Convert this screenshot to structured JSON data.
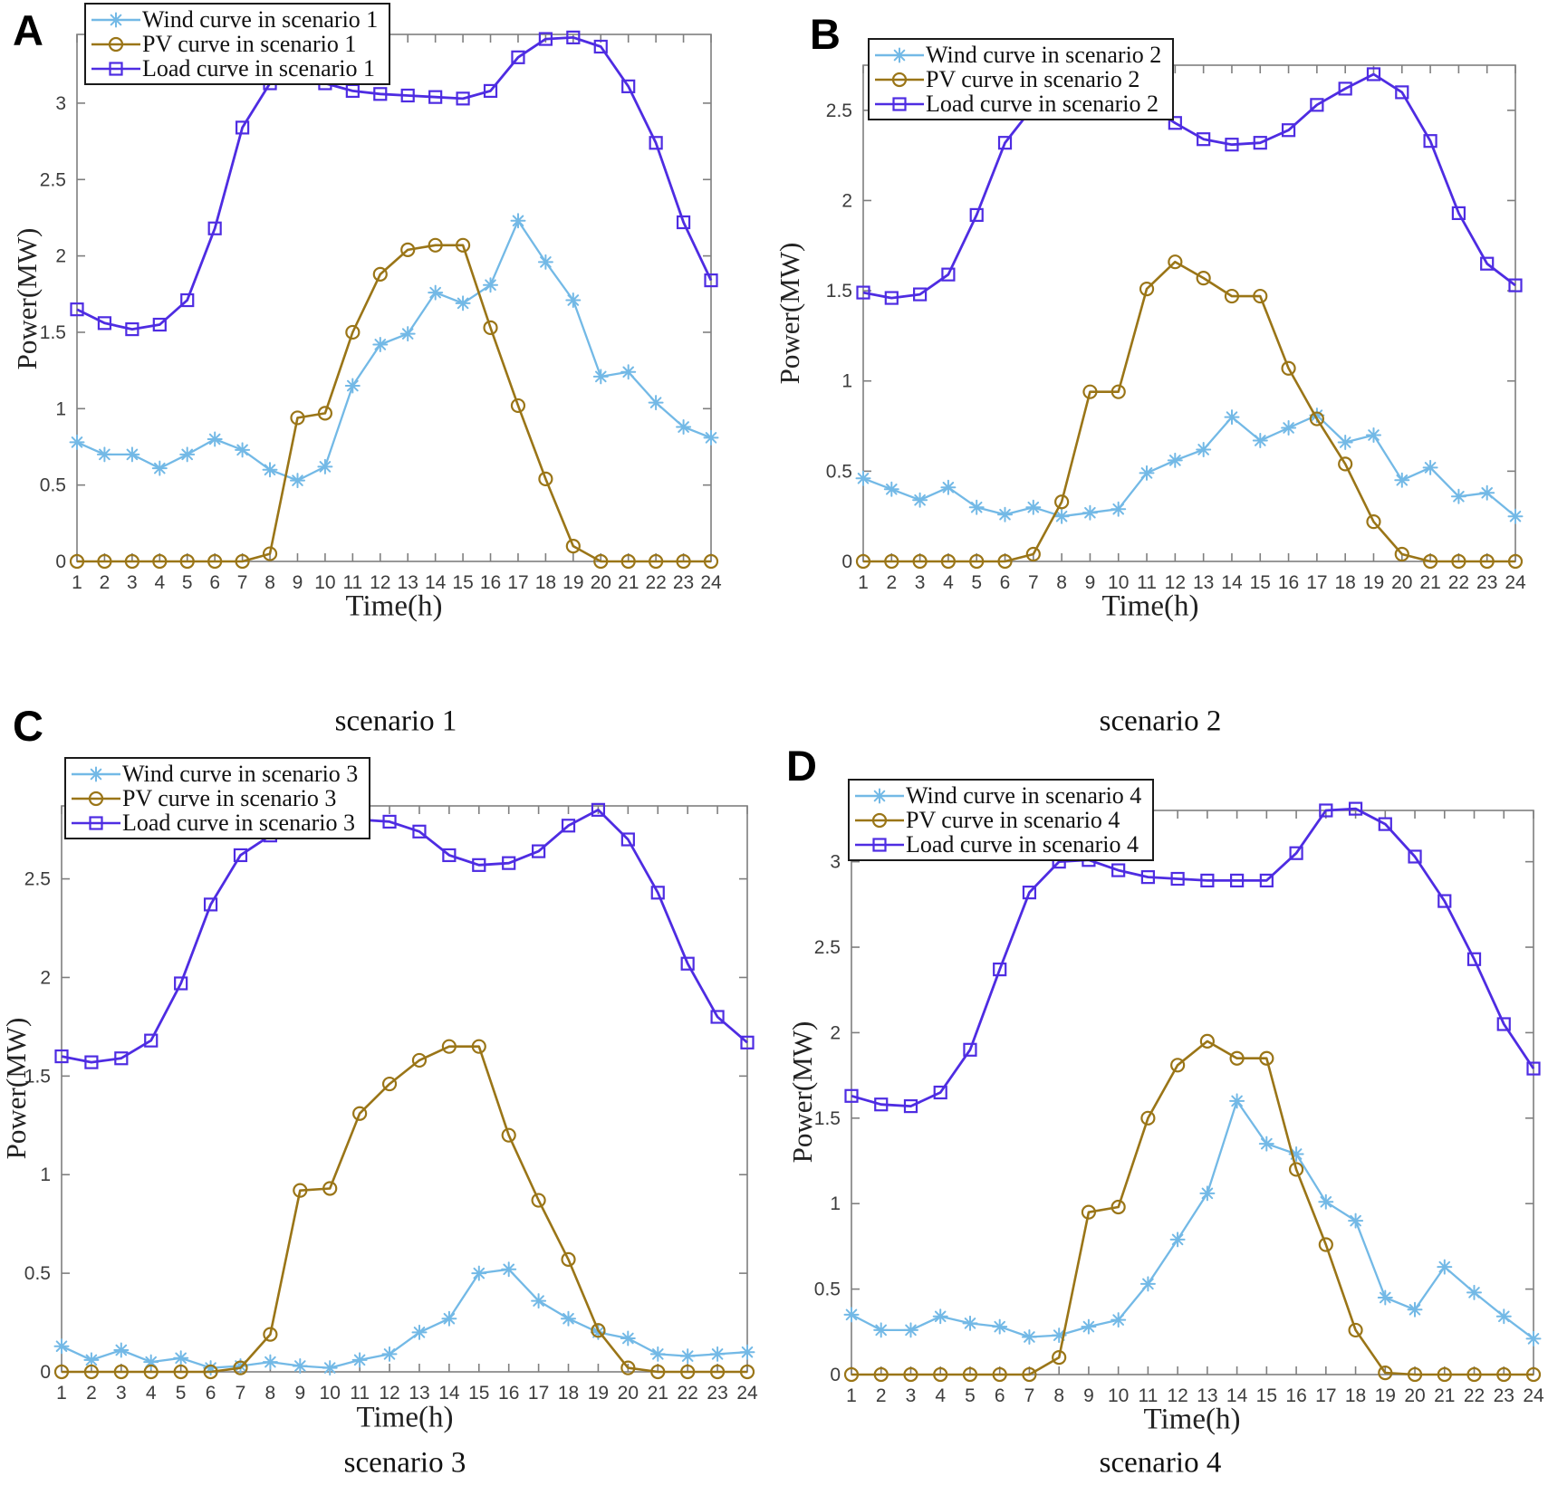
{
  "colors": {
    "wind": "#73B9E6",
    "pv": "#9A7517",
    "load": "#4E2CE2",
    "frame": "#7F7F7F",
    "tick_text": "#3D3D3D",
    "legend_border": "#1A1A1A",
    "background": "#FFFFFF"
  },
  "panels": [
    {
      "letter": "A"
    },
    {
      "letter": "B"
    },
    {
      "letter": "C"
    },
    {
      "letter": "D"
    }
  ],
  "chart_data": [
    {
      "type": "line",
      "title": "scenario 1",
      "xlabel": "Time(h)",
      "ylabel": "Power(MW)",
      "x": [
        1,
        2,
        3,
        4,
        5,
        6,
        7,
        8,
        9,
        10,
        11,
        12,
        13,
        14,
        15,
        16,
        17,
        18,
        19,
        20,
        21,
        22,
        23,
        24
      ],
      "xlim": [
        1,
        24
      ],
      "ylim": [
        0,
        3.45
      ],
      "yticks": [
        0,
        0.5,
        1,
        1.5,
        2,
        2.5,
        3
      ],
      "grid": false,
      "legend_position": "top-left",
      "series": [
        {
          "name": "Wind curve in scenario 1",
          "marker": "asterisk",
          "color_role": "wind",
          "values": [
            0.78,
            0.7,
            0.7,
            0.61,
            0.7,
            0.8,
            0.73,
            0.6,
            0.53,
            0.62,
            1.15,
            1.42,
            1.49,
            1.76,
            1.69,
            1.81,
            2.23,
            1.96,
            1.71,
            1.21,
            1.24,
            1.04,
            0.88,
            0.81
          ]
        },
        {
          "name": "PV curve in scenario 1",
          "marker": "circle",
          "color_role": "pv",
          "values": [
            0,
            0,
            0,
            0,
            0,
            0,
            0,
            0.05,
            0.94,
            0.97,
            1.5,
            1.88,
            2.04,
            2.07,
            2.07,
            1.53,
            1.02,
            0.54,
            0.1,
            0,
            0,
            0,
            0,
            0
          ]
        },
        {
          "name": "Load curve in scenario 1",
          "marker": "square",
          "color_role": "load",
          "values": [
            1.65,
            1.56,
            1.52,
            1.55,
            1.71,
            2.18,
            2.84,
            3.13,
            3.19,
            3.13,
            3.08,
            3.06,
            3.05,
            3.04,
            3.03,
            3.08,
            3.3,
            3.42,
            3.43,
            3.37,
            3.11,
            2.74,
            2.22,
            1.84
          ]
        }
      ]
    },
    {
      "type": "line",
      "title": "scenario 2",
      "xlabel": "Time(h)",
      "ylabel": "Power(MW)",
      "x": [
        1,
        2,
        3,
        4,
        5,
        6,
        7,
        8,
        9,
        10,
        11,
        12,
        13,
        14,
        15,
        16,
        17,
        18,
        19,
        20,
        21,
        22,
        23,
        24
      ],
      "xlim": [
        1,
        24
      ],
      "ylim": [
        0,
        2.75
      ],
      "yticks": [
        0,
        0.5,
        1,
        1.5,
        2,
        2.5
      ],
      "grid": false,
      "legend_position": "top-left",
      "series": [
        {
          "name": "Wind curve in scenario 2",
          "marker": "asterisk",
          "color_role": "wind",
          "values": [
            0.46,
            0.4,
            0.34,
            0.41,
            0.3,
            0.26,
            0.3,
            0.25,
            0.27,
            0.29,
            0.49,
            0.56,
            0.62,
            0.8,
            0.67,
            0.74,
            0.81,
            0.66,
            0.7,
            0.45,
            0.52,
            0.36,
            0.38,
            0.25
          ]
        },
        {
          "name": "PV curve in scenario 2",
          "marker": "circle",
          "color_role": "pv",
          "values": [
            0,
            0,
            0,
            0,
            0,
            0,
            0.04,
            0.33,
            0.94,
            0.94,
            1.51,
            1.66,
            1.57,
            1.47,
            1.47,
            1.07,
            0.79,
            0.54,
            0.22,
            0.04,
            0,
            0,
            0,
            0
          ]
        },
        {
          "name": "Load curve in scenario 2",
          "marker": "square",
          "color_role": "load",
          "values": [
            1.49,
            1.46,
            1.48,
            1.59,
            1.92,
            2.32,
            2.52,
            2.56,
            2.57,
            2.56,
            2.53,
            2.43,
            2.34,
            2.31,
            2.32,
            2.39,
            2.53,
            2.62,
            2.7,
            2.6,
            2.33,
            1.93,
            1.65,
            1.53
          ]
        }
      ]
    },
    {
      "type": "line",
      "title": "scenario 3",
      "xlabel": "Time(h)",
      "ylabel": "Power(MW)",
      "x": [
        1,
        2,
        3,
        4,
        5,
        6,
        7,
        8,
        9,
        10,
        11,
        12,
        13,
        14,
        15,
        16,
        17,
        18,
        19,
        20,
        21,
        22,
        23,
        24
      ],
      "xlim": [
        1,
        24
      ],
      "ylim": [
        0,
        2.87
      ],
      "yticks": [
        0,
        0.5,
        1,
        1.5,
        2,
        2.5
      ],
      "grid": false,
      "legend_position": "top-left",
      "series": [
        {
          "name": "Wind curve in scenario 3",
          "marker": "asterisk",
          "color_role": "wind",
          "values": [
            0.13,
            0.06,
            0.11,
            0.05,
            0.07,
            0.02,
            0.03,
            0.05,
            0.03,
            0.02,
            0.06,
            0.09,
            0.2,
            0.27,
            0.5,
            0.52,
            0.36,
            0.27,
            0.2,
            0.17,
            0.09,
            0.08,
            0.09,
            0.1
          ]
        },
        {
          "name": "PV curve in scenario 3",
          "marker": "circle",
          "color_role": "pv",
          "values": [
            0,
            0,
            0,
            0,
            0,
            0,
            0.02,
            0.19,
            0.92,
            0.93,
            1.31,
            1.46,
            1.58,
            1.65,
            1.65,
            1.2,
            0.87,
            0.57,
            0.21,
            0.02,
            0,
            0,
            0,
            0
          ]
        },
        {
          "name": "Load curve in scenario 3",
          "marker": "square",
          "color_role": "load",
          "values": [
            1.6,
            1.57,
            1.59,
            1.68,
            1.97,
            2.37,
            2.62,
            2.72,
            2.75,
            2.8,
            2.8,
            2.79,
            2.74,
            2.62,
            2.57,
            2.58,
            2.64,
            2.77,
            2.85,
            2.7,
            2.43,
            2.07,
            1.8,
            1.67
          ]
        }
      ]
    },
    {
      "type": "line",
      "title": "scenario 4",
      "xlabel": "Time(h)",
      "ylabel": "Power(MW)",
      "x": [
        1,
        2,
        3,
        4,
        5,
        6,
        7,
        8,
        9,
        10,
        11,
        12,
        13,
        14,
        15,
        16,
        17,
        18,
        19,
        20,
        21,
        22,
        23,
        24
      ],
      "xlim": [
        1,
        24
      ],
      "ylim": [
        0,
        3.3
      ],
      "yticks": [
        0,
        0.5,
        1,
        1.5,
        2,
        2.5,
        3
      ],
      "grid": false,
      "legend_position": "top-left",
      "series": [
        {
          "name": "Wind curve in scenario 4",
          "marker": "asterisk",
          "color_role": "wind",
          "values": [
            0.35,
            0.26,
            0.26,
            0.34,
            0.3,
            0.28,
            0.22,
            0.23,
            0.28,
            0.32,
            0.53,
            0.79,
            1.06,
            1.6,
            1.35,
            1.29,
            1.01,
            0.9,
            0.45,
            0.38,
            0.63,
            0.48,
            0.34,
            0.21
          ]
        },
        {
          "name": "PV curve in scenario 4",
          "marker": "circle",
          "color_role": "pv",
          "values": [
            0,
            0,
            0,
            0,
            0,
            0,
            0,
            0.1,
            0.95,
            0.98,
            1.5,
            1.81,
            1.95,
            1.85,
            1.85,
            1.2,
            0.76,
            0.26,
            0.01,
            0,
            0,
            0,
            0,
            0
          ]
        },
        {
          "name": "Load curve in scenario 4",
          "marker": "square",
          "color_role": "load",
          "values": [
            1.63,
            1.58,
            1.57,
            1.65,
            1.9,
            2.37,
            2.82,
            3.0,
            3.01,
            2.95,
            2.91,
            2.9,
            2.89,
            2.89,
            2.89,
            3.05,
            3.3,
            3.31,
            3.22,
            3.03,
            2.77,
            2.43,
            2.05,
            1.79
          ]
        }
      ]
    }
  ]
}
